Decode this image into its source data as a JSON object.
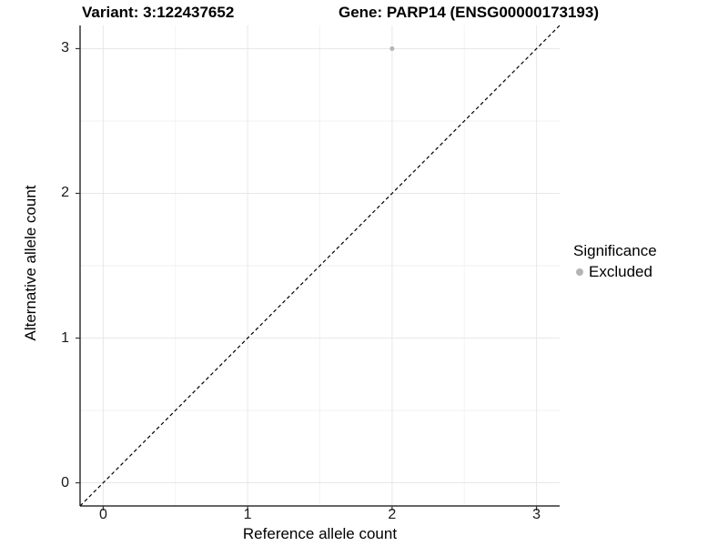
{
  "figure": {
    "title_variant": "Variant: 3:122437652",
    "title_gene": "Gene: PARP14 (ENSG00000173193)"
  },
  "legend": {
    "title": "Significance",
    "items": [
      {
        "label": "Excluded",
        "color": "#b4b4b4"
      }
    ]
  },
  "chart_data": {
    "type": "scatter",
    "title": "Variant: 3:122437652 — Gene: PARP14 (ENSG00000173193)",
    "xlabel": "Reference allele count",
    "ylabel": "Alternative allele count",
    "xlim": [
      -0.16,
      3.16
    ],
    "ylim": [
      -0.16,
      3.16
    ],
    "xticks": [
      0,
      1,
      2,
      3
    ],
    "yticks": [
      0,
      1,
      2,
      3
    ],
    "minor_ticks": [
      0.5,
      1.5,
      2.5
    ],
    "grid": "major+minor",
    "legend_position": "right",
    "series": [
      {
        "name": "Excluded",
        "color": "#b4b4b4",
        "points": [
          [
            2,
            3
          ]
        ]
      }
    ],
    "reference_line": {
      "kind": "identity",
      "from": [
        -0.16,
        -0.16
      ],
      "to": [
        3.16,
        3.16
      ],
      "style": "dashed",
      "color": "#000000"
    }
  },
  "style": {
    "background": "#ffffff",
    "grid_major_color": "#e7e7e7",
    "grid_minor_color": "#f2f2f2",
    "axis_line_color": "#333333",
    "tick_color": "#333333",
    "point_color": "#b4b4b4",
    "tick_label_color": "#1a1a1a"
  }
}
